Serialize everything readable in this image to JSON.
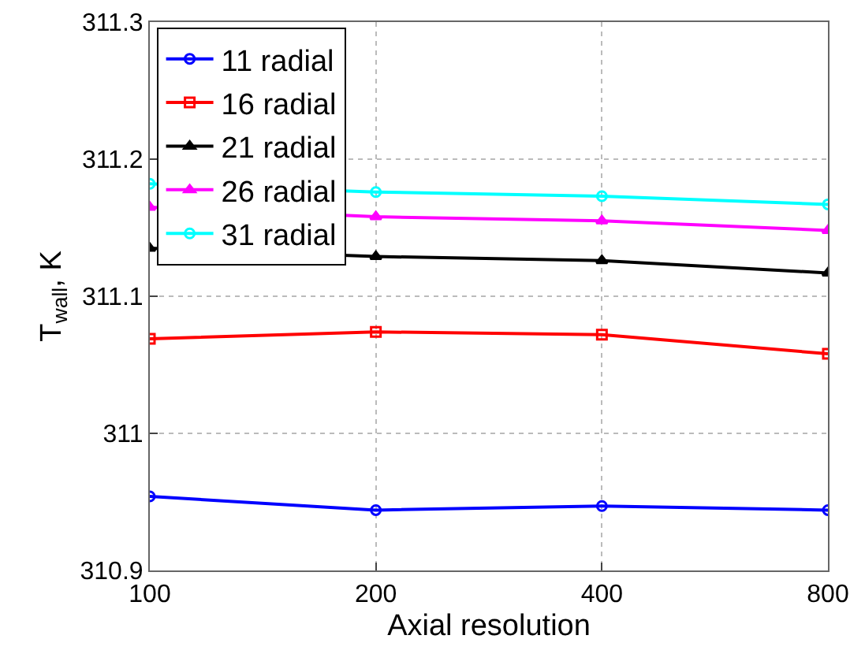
{
  "chart_data": {
    "type": "line",
    "xlabel": "Axial resolution",
    "ylabel": "T$_{wall}$, K",
    "categories": [
      "100",
      "200",
      "400",
      "800"
    ],
    "series": [
      {
        "name": "11 radial",
        "color": "#0000ff",
        "marker": "circle",
        "values": [
          310.954,
          310.944,
          310.947,
          310.944
        ]
      },
      {
        "name": "16 radial",
        "color": "#ff0000",
        "marker": "square",
        "values": [
          311.069,
          311.074,
          311.072,
          311.058
        ]
      },
      {
        "name": "21 radial",
        "color": "#000000",
        "marker": "triangle",
        "values": [
          311.135,
          311.129,
          311.126,
          311.117
        ]
      },
      {
        "name": "26 radial",
        "color": "#ff00ff",
        "marker": "triangle",
        "values": [
          311.165,
          311.158,
          311.155,
          311.148
        ]
      },
      {
        "name": "31 radial",
        "color": "#00ffff",
        "marker": "circle",
        "values": [
          311.182,
          311.176,
          311.173,
          311.167
        ]
      }
    ],
    "ylim": [
      310.9,
      311.3
    ],
    "yticks": [
      310.9,
      311,
      311.1,
      311.2,
      311.3
    ],
    "grid": true,
    "legend": "top left",
    "line_style": "solid"
  }
}
